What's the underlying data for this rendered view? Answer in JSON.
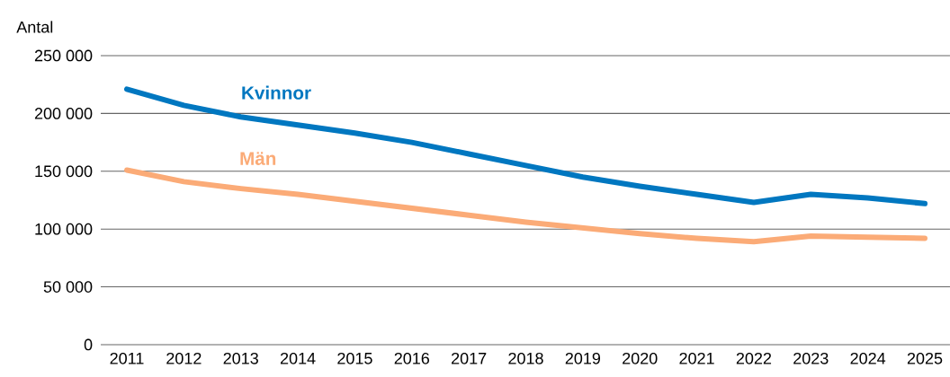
{
  "chart_data": {
    "type": "line",
    "ylabel": "Antal",
    "categories": [
      "2011",
      "2012",
      "2013",
      "2014",
      "2015",
      "2016",
      "2017",
      "2018",
      "2019",
      "2020",
      "2021",
      "2022",
      "2023",
      "2024",
      "2025"
    ],
    "series": [
      {
        "name": "Kvinnor",
        "color": "#0077c0",
        "values": [
          221000,
          207000,
          197000,
          190000,
          183000,
          175000,
          165000,
          155000,
          145000,
          137000,
          130000,
          123000,
          130000,
          127000,
          122000
        ]
      },
      {
        "name": "Män",
        "color": "#fbab77",
        "values": [
          151000,
          141000,
          135000,
          130000,
          124000,
          118000,
          112000,
          106000,
          101000,
          96000,
          92000,
          89000,
          94000,
          93000,
          92000
        ]
      }
    ],
    "ylim": [
      0,
      250000
    ],
    "yticks": [
      {
        "value": 0,
        "label": "0"
      },
      {
        "value": 50000,
        "label": "50 000"
      },
      {
        "value": 100000,
        "label": "100 000"
      },
      {
        "value": 150000,
        "label": "150 000"
      },
      {
        "value": 200000,
        "label": "200 000"
      },
      {
        "value": 250000,
        "label": "250 000"
      }
    ],
    "grid": "y",
    "marker": "none",
    "line_style": "solid"
  }
}
